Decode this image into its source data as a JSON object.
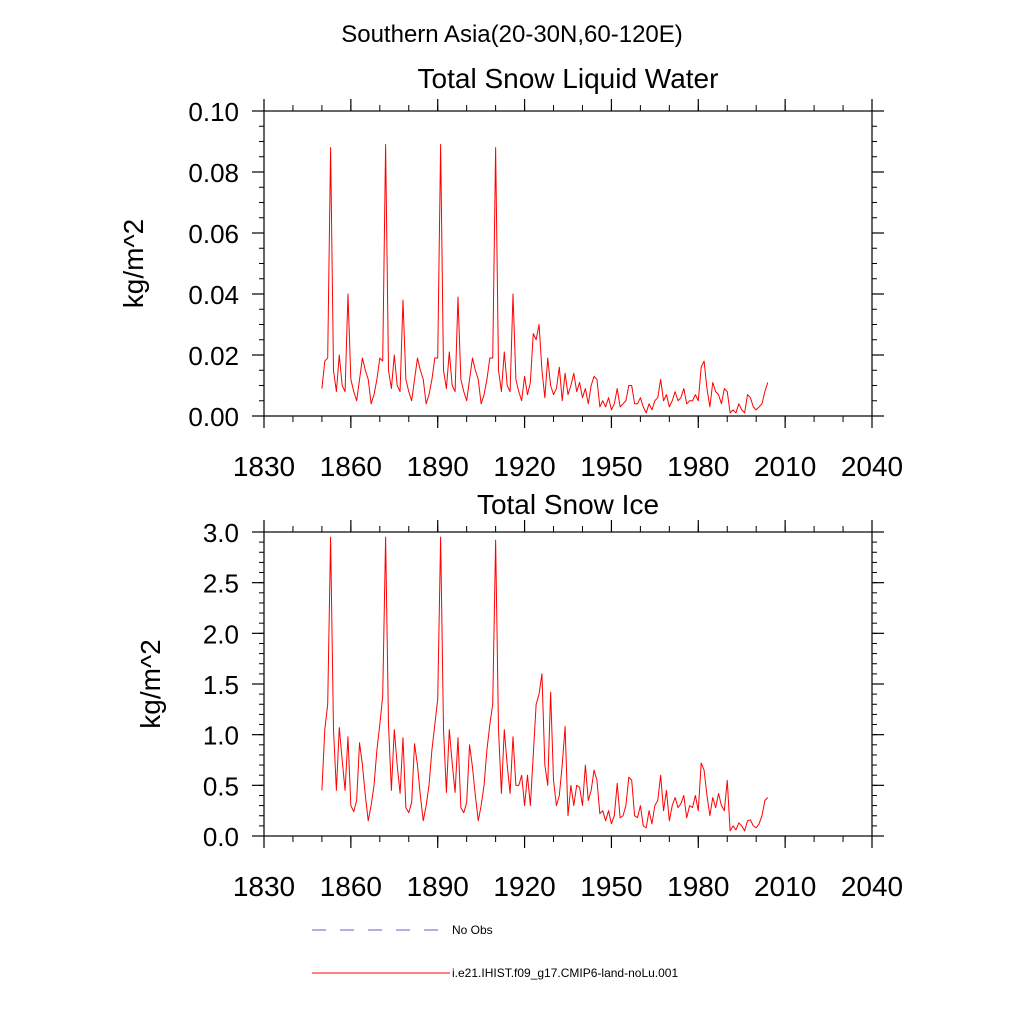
{
  "figure": {
    "suptitle": "Southern Asia(20-30N,60-120E)"
  },
  "legend": [
    {
      "label": "No Obs",
      "color": "#6a5acd",
      "style": "dashed"
    },
    {
      "label": "i.e21.IHIST.f09_g17.CMIP6-land-noLu.001",
      "color": "#ff0000",
      "style": "solid"
    }
  ],
  "chart_data": [
    {
      "type": "line",
      "title": "Total Snow Liquid Water",
      "xlabel": "",
      "ylabel": "kg/m^2",
      "xlim": [
        1830,
        2040
      ],
      "ylim": [
        0,
        0.1
      ],
      "xticks": [
        1830,
        1860,
        1890,
        1920,
        1950,
        1980,
        2010,
        2040
      ],
      "xtick_labels": [
        "1830",
        "1860",
        "1890",
        "1920",
        "1950",
        "1980",
        "2010",
        "2040"
      ],
      "yticks": [
        0,
        0.02,
        0.04,
        0.06,
        0.08,
        0.1
      ],
      "ytick_labels": [
        "0.00",
        "0.02",
        "0.04",
        "0.06",
        "0.08",
        "0.10"
      ],
      "yminor": 0.005,
      "grid": false,
      "series": [
        {
          "name": "i.e21.IHIST.f09_g17.CMIP6-land-noLu.001",
          "color": "#ff0000",
          "x_start": 1850,
          "values": [
            0.009,
            0.018,
            0.019,
            0.088,
            0.015,
            0.008,
            0.02,
            0.01,
            0.008,
            0.04,
            0.012,
            0.008,
            0.005,
            0.012,
            0.019,
            0.015,
            0.012,
            0.004,
            0.007,
            0.012,
            0.019,
            0.018,
            0.089,
            0.015,
            0.009,
            0.02,
            0.01,
            0.008,
            0.038,
            0.012,
            0.008,
            0.005,
            0.012,
            0.019,
            0.015,
            0.012,
            0.004,
            0.007,
            0.012,
            0.019,
            0.019,
            0.089,
            0.015,
            0.009,
            0.021,
            0.01,
            0.008,
            0.039,
            0.012,
            0.008,
            0.005,
            0.012,
            0.019,
            0.015,
            0.012,
            0.004,
            0.007,
            0.012,
            0.019,
            0.019,
            0.088,
            0.015,
            0.008,
            0.021,
            0.01,
            0.008,
            0.04,
            0.012,
            0.008,
            0.005,
            0.013,
            0.007,
            0.011,
            0.027,
            0.025,
            0.03,
            0.015,
            0.006,
            0.019,
            0.01,
            0.007,
            0.009,
            0.016,
            0.005,
            0.014,
            0.007,
            0.01,
            0.014,
            0.008,
            0.011,
            0.006,
            0.009,
            0.004,
            0.01,
            0.013,
            0.012,
            0.003,
            0.005,
            0.003,
            0.006,
            0.002,
            0.004,
            0.009,
            0.003,
            0.004,
            0.005,
            0.01,
            0.01,
            0.004,
            0.004,
            0.006,
            0.003,
            0.001,
            0.004,
            0.002,
            0.005,
            0.006,
            0.012,
            0.005,
            0.007,
            0.003,
            0.005,
            0.008,
            0.005,
            0.006,
            0.009,
            0.004,
            0.005,
            0.005,
            0.007,
            0.005,
            0.016,
            0.018,
            0.009,
            0.003,
            0.011,
            0.008,
            0.007,
            0.004,
            0.009,
            0.008,
            0.001,
            0.002,
            0.001,
            0.004,
            0.002,
            0.001,
            0.007,
            0.006,
            0.003,
            0.002,
            0.003,
            0.004,
            0.008,
            0.011
          ]
        }
      ]
    },
    {
      "type": "line",
      "title": "Total Snow Ice",
      "xlabel": "",
      "ylabel": "kg/m^2",
      "xlim": [
        1830,
        2040
      ],
      "ylim": [
        0,
        3.0
      ],
      "xticks": [
        1830,
        1860,
        1890,
        1920,
        1950,
        1980,
        2010,
        2040
      ],
      "xtick_labels": [
        "1830",
        "1860",
        "1890",
        "1920",
        "1950",
        "1980",
        "2010",
        "2040"
      ],
      "yticks": [
        0,
        0.5,
        1.0,
        1.5,
        2.0,
        2.5,
        3.0
      ],
      "ytick_labels": [
        "0.0",
        "0.5",
        "1.0",
        "1.5",
        "2.0",
        "2.5",
        "3.0"
      ],
      "yminor": 0.1,
      "grid": false,
      "series": [
        {
          "name": "i.e21.IHIST.f09_g17.CMIP6-land-noLu.001",
          "color": "#ff0000",
          "x_start": 1850,
          "values": [
            0.45,
            1.05,
            1.3,
            2.95,
            1.05,
            0.45,
            1.07,
            0.75,
            0.45,
            0.98,
            0.3,
            0.24,
            0.35,
            0.92,
            0.7,
            0.4,
            0.15,
            0.3,
            0.5,
            0.85,
            1.1,
            1.38,
            2.95,
            1.1,
            0.45,
            1.05,
            0.7,
            0.42,
            0.97,
            0.28,
            0.23,
            0.33,
            0.91,
            0.7,
            0.4,
            0.15,
            0.3,
            0.5,
            0.85,
            1.1,
            1.35,
            2.95,
            1.05,
            0.43,
            1.05,
            0.72,
            0.43,
            0.97,
            0.28,
            0.23,
            0.33,
            0.9,
            0.68,
            0.4,
            0.15,
            0.3,
            0.5,
            0.85,
            1.1,
            1.3,
            2.92,
            1.05,
            0.42,
            1.05,
            0.7,
            0.42,
            0.98,
            0.5,
            0.5,
            0.6,
            0.3,
            0.6,
            0.3,
            0.8,
            1.3,
            1.4,
            1.6,
            0.7,
            0.5,
            1.42,
            0.55,
            0.3,
            0.4,
            0.7,
            1.08,
            0.2,
            0.5,
            0.3,
            0.5,
            0.48,
            0.3,
            0.7,
            0.35,
            0.45,
            0.65,
            0.55,
            0.22,
            0.25,
            0.15,
            0.25,
            0.12,
            0.2,
            0.52,
            0.18,
            0.2,
            0.3,
            0.58,
            0.55,
            0.2,
            0.18,
            0.3,
            0.1,
            0.08,
            0.25,
            0.12,
            0.3,
            0.35,
            0.6,
            0.25,
            0.45,
            0.15,
            0.3,
            0.38,
            0.28,
            0.32,
            0.4,
            0.18,
            0.3,
            0.28,
            0.4,
            0.25,
            0.72,
            0.65,
            0.4,
            0.2,
            0.38,
            0.28,
            0.42,
            0.3,
            0.25,
            0.55,
            0.05,
            0.1,
            0.06,
            0.13,
            0.1,
            0.05,
            0.15,
            0.16,
            0.1,
            0.08,
            0.12,
            0.2,
            0.35,
            0.38
          ]
        }
      ]
    }
  ]
}
